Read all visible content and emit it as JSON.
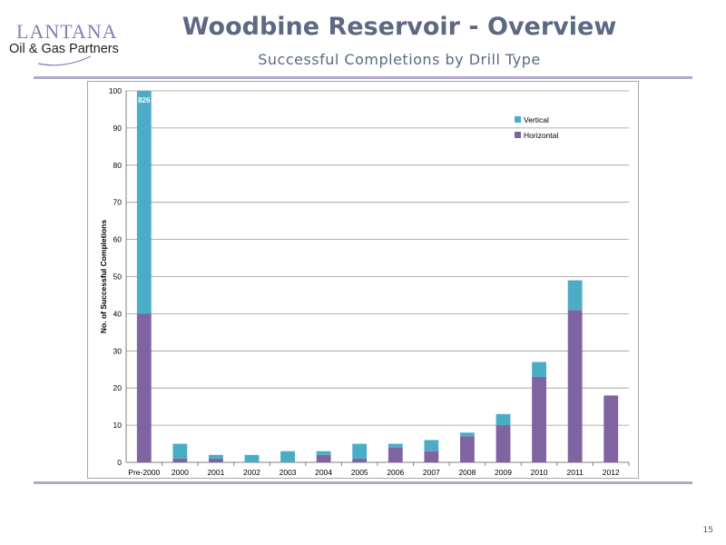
{
  "logo": {
    "name_top": "LANTANA",
    "name_bottom": "Oil & Gas Partners"
  },
  "header": {
    "title": "Woodbine Reservoir - Overview",
    "subtitle": "Successful Completions by Drill Type"
  },
  "colors": {
    "vertical": "#4bacc6",
    "horizontal": "#8064a2",
    "rule": "#b3a7cf",
    "title": "#5d6883"
  },
  "chart_data": {
    "type": "bar",
    "stacked": true,
    "title": "",
    "xlabel": "",
    "ylabel": "No. of Successful Completions",
    "ylim": [
      0,
      100
    ],
    "yticks": [
      0,
      10,
      20,
      30,
      40,
      50,
      60,
      70,
      80,
      90,
      100
    ],
    "grid": true,
    "legend_position": "top-right",
    "categories": [
      "Pre-2000",
      "2000",
      "2001",
      "2002",
      "2003",
      "2004",
      "2005",
      "2006",
      "2007",
      "2008",
      "2009",
      "2010",
      "2011",
      "2012"
    ],
    "series": [
      {
        "name": "Horizontal",
        "color": "#8064a2",
        "values": [
          40,
          1,
          1,
          0,
          0,
          2,
          1,
          4,
          3,
          7,
          10,
          23,
          41,
          18
        ]
      },
      {
        "name": "Vertical",
        "color": "#4bacc6",
        "values": [
          60,
          4,
          1,
          2,
          3,
          1,
          4,
          1,
          3,
          1,
          3,
          4,
          8,
          0
        ]
      }
    ],
    "legend_order": [
      "Vertical",
      "Horizontal"
    ],
    "annotations": [
      {
        "category": "Pre-2000",
        "text": "826"
      }
    ]
  },
  "page_number": "15"
}
